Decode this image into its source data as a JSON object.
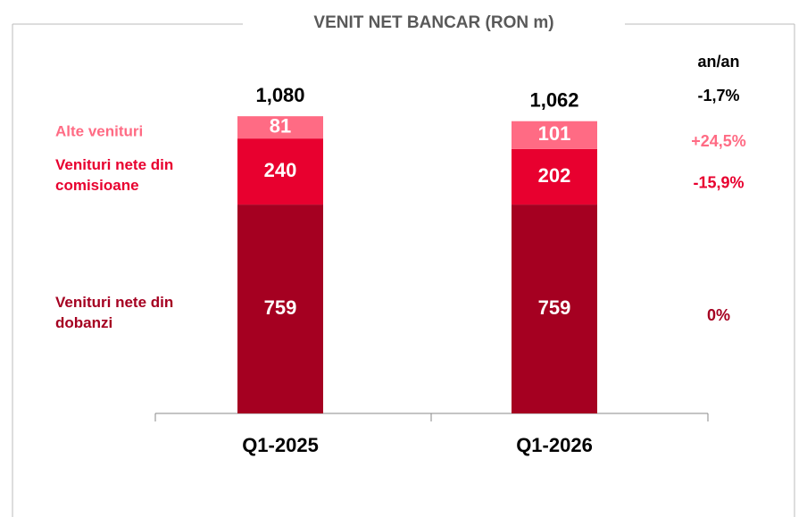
{
  "chart_data": {
    "type": "stacked_bar",
    "title": "VENIT NET BANCAR (RON m)",
    "categories": [
      "Q1-2025",
      "Q1-2026"
    ],
    "series": [
      {
        "name": "Venituri nete din dobanzi",
        "color": "#a50021",
        "values": [
          759,
          759
        ],
        "change": "0%"
      },
      {
        "name": "Venituri nete din comisioane",
        "color": "#e8002f",
        "values": [
          240,
          202
        ],
        "change": "-15,9%"
      },
      {
        "name": "Alte venituri",
        "color": "#ff6b84",
        "values": [
          81,
          101
        ],
        "change": "+24,5%"
      }
    ],
    "totals": {
      "values": [
        1080,
        1062
      ],
      "value_labels": [
        "1,080",
        "1,062"
      ],
      "change": "-1,7%"
    },
    "change_header": "an/an",
    "ylim": [
      0,
      1100
    ]
  }
}
